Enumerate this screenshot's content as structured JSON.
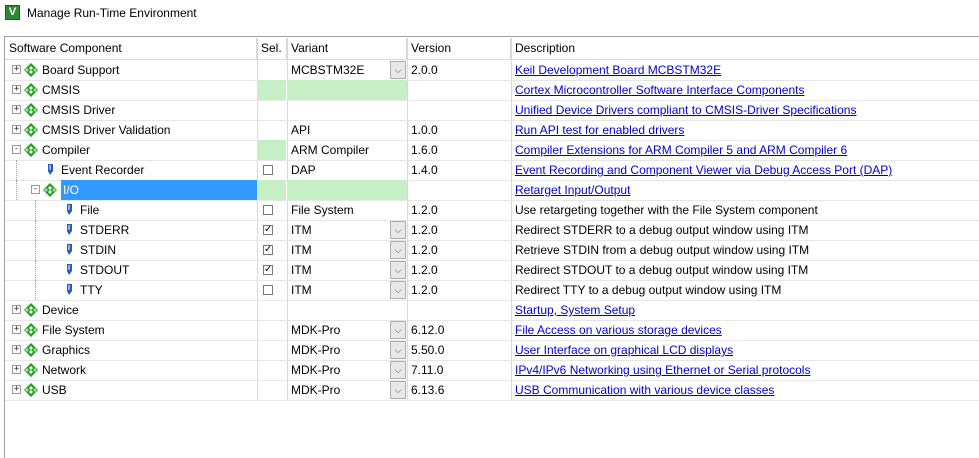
{
  "window": {
    "title": "Manage Run-Time Environment",
    "icon_letter": "V"
  },
  "columns": {
    "component": "Software Component",
    "sel": "Sel.",
    "variant": "Variant",
    "version": "Version",
    "description": "Description"
  },
  "colors": {
    "selected_bg": "#3399ff",
    "green_cell": "#c6efc6",
    "component_icon": "#1fa31f",
    "link": "#0000cc"
  },
  "rows": [
    {
      "name": "Board Support",
      "depth": 0,
      "expander": "+",
      "icon": "component-diamond-icon",
      "sel": "",
      "sel_green": false,
      "variant": "MCBSTM32E",
      "variant_green": false,
      "dropdown": true,
      "version": "2.0.0",
      "description": "Keil Development Board MCBSTM32E",
      "link": true
    },
    {
      "name": "CMSIS",
      "depth": 0,
      "expander": "+",
      "icon": "component-diamond-icon",
      "sel": "",
      "sel_green": true,
      "variant": "",
      "variant_green": true,
      "dropdown": false,
      "version": "",
      "description": "Cortex Microcontroller Software Interface Components",
      "link": true
    },
    {
      "name": "CMSIS Driver",
      "depth": 0,
      "expander": "+",
      "icon": "component-diamond-icon",
      "sel": "",
      "sel_green": false,
      "variant": "",
      "variant_green": false,
      "dropdown": false,
      "version": "",
      "description": "Unified Device Drivers compliant to CMSIS-Driver Specifications",
      "link": true
    },
    {
      "name": "CMSIS Driver Validation",
      "depth": 0,
      "expander": "+",
      "icon": "component-diamond-icon",
      "sel": "",
      "sel_green": false,
      "variant": "API",
      "variant_green": false,
      "dropdown": false,
      "version": "1.0.0",
      "description": "Run API test for enabled drivers",
      "link": true
    },
    {
      "name": "Compiler",
      "depth": 0,
      "expander": "-",
      "icon": "component-diamond-icon",
      "sel": "",
      "sel_green": true,
      "variant": "ARM Compiler",
      "variant_green": false,
      "dropdown": false,
      "version": "1.6.0",
      "description": "Compiler Extensions for ARM Compiler 5 and ARM Compiler 6",
      "link": true
    },
    {
      "name": "Event Recorder",
      "depth": 1,
      "expander": "",
      "icon": "pin-icon",
      "sel": "unchecked",
      "sel_green": false,
      "variant": "DAP",
      "variant_green": false,
      "dropdown": false,
      "version": "1.4.0",
      "description": "Event Recording and Component Viewer via Debug Access Port (DAP)",
      "link": true
    },
    {
      "name": "I/O",
      "depth": 1,
      "expander": "-",
      "icon": "component-diamond-icon",
      "sel": "",
      "sel_green": true,
      "variant": "",
      "variant_green": true,
      "dropdown": false,
      "version": "",
      "description": "Retarget Input/Output",
      "link": true,
      "selected": true
    },
    {
      "name": "File",
      "depth": 2,
      "expander": "",
      "icon": "pin-icon",
      "sel": "unchecked",
      "sel_green": false,
      "variant": "File System",
      "variant_green": false,
      "dropdown": false,
      "version": "1.2.0",
      "description": "Use retargeting together with the File System component",
      "link": false
    },
    {
      "name": "STDERR",
      "depth": 2,
      "expander": "",
      "icon": "pin-icon",
      "sel": "checked",
      "sel_green": false,
      "variant": "ITM",
      "variant_green": false,
      "dropdown": true,
      "version": "1.2.0",
      "description": "Redirect STDERR to a debug output window using ITM",
      "link": false
    },
    {
      "name": "STDIN",
      "depth": 2,
      "expander": "",
      "icon": "pin-icon",
      "sel": "checked",
      "sel_green": false,
      "variant": "ITM",
      "variant_green": false,
      "dropdown": true,
      "version": "1.2.0",
      "description": "Retrieve STDIN from a debug output window using ITM",
      "link": false
    },
    {
      "name": "STDOUT",
      "depth": 2,
      "expander": "",
      "icon": "pin-icon",
      "sel": "checked",
      "sel_green": false,
      "variant": "ITM",
      "variant_green": false,
      "dropdown": true,
      "version": "1.2.0",
      "description": "Redirect STDOUT to a debug output window using ITM",
      "link": false
    },
    {
      "name": "TTY",
      "depth": 2,
      "expander": "",
      "icon": "pin-icon",
      "sel": "unchecked",
      "sel_green": false,
      "variant": "ITM",
      "variant_green": false,
      "dropdown": true,
      "version": "1.2.0",
      "description": "Redirect TTY to a debug output window using ITM",
      "link": false
    },
    {
      "name": "Device",
      "depth": 0,
      "expander": "+",
      "icon": "component-diamond-icon",
      "sel": "",
      "sel_green": false,
      "variant": "",
      "variant_green": false,
      "dropdown": false,
      "version": "",
      "description": "Startup, System Setup",
      "link": true
    },
    {
      "name": "File System",
      "depth": 0,
      "expander": "+",
      "icon": "component-diamond-icon",
      "sel": "",
      "sel_green": false,
      "variant": "MDK-Pro",
      "variant_green": false,
      "dropdown": true,
      "version": "6.12.0",
      "description": "File Access on various storage devices",
      "link": true
    },
    {
      "name": "Graphics",
      "depth": 0,
      "expander": "+",
      "icon": "component-diamond-icon",
      "sel": "",
      "sel_green": false,
      "variant": "MDK-Pro",
      "variant_green": false,
      "dropdown": true,
      "version": "5.50.0",
      "description": "User Interface on graphical LCD displays",
      "link": true
    },
    {
      "name": "Network",
      "depth": 0,
      "expander": "+",
      "icon": "component-diamond-icon",
      "sel": "",
      "sel_green": false,
      "variant": "MDK-Pro",
      "variant_green": false,
      "dropdown": true,
      "version": "7.11.0",
      "description": "IPv4/IPv6 Networking using Ethernet or Serial protocols",
      "link": true
    },
    {
      "name": "USB",
      "depth": 0,
      "expander": "+",
      "icon": "component-diamond-icon",
      "sel": "",
      "sel_green": false,
      "variant": "MDK-Pro",
      "variant_green": false,
      "dropdown": true,
      "version": "6.13.6",
      "description": "USB Communication with various device classes",
      "link": true
    }
  ]
}
